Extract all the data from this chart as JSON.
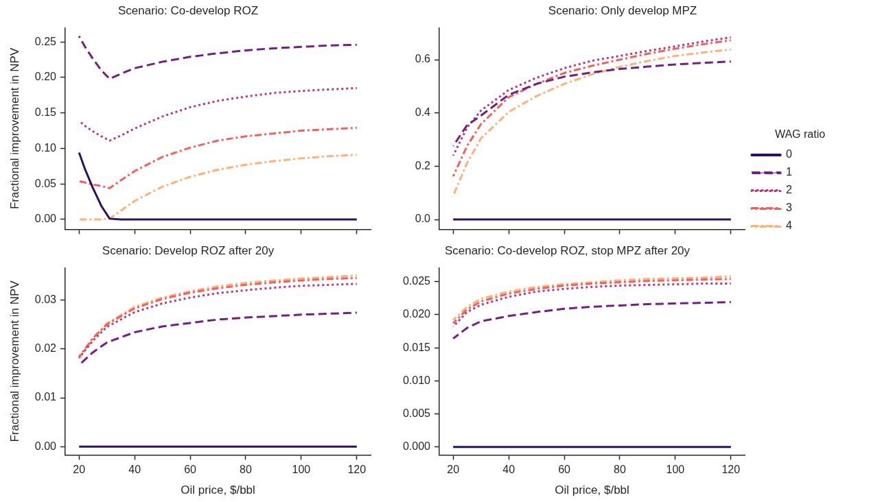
{
  "chart_data": [
    {
      "type": "line",
      "title": "Scenario: Co-develop ROZ",
      "ylabel": "Fractional improvement in NPV",
      "tick_labels": "y",
      "x": [
        20,
        22,
        25,
        28,
        31,
        35,
        40,
        50,
        60,
        70,
        80,
        90,
        100,
        110,
        120
      ],
      "xlim": [
        15,
        125
      ],
      "xticks": [
        20,
        40,
        60,
        80,
        100,
        120
      ],
      "ylim": [
        -0.014,
        0.27
      ],
      "yticks": [
        {
          "value": 0,
          "label": "0.00"
        },
        {
          "value": 0.05,
          "label": "0.05"
        },
        {
          "value": 0.1,
          "label": "0.10"
        },
        {
          "value": 0.15,
          "label": "0.15"
        },
        {
          "value": 0.2,
          "label": "0.20"
        },
        {
          "value": 0.25,
          "label": "0.25"
        }
      ],
      "series": [
        {
          "color": "#2d1160",
          "line_style": "solid",
          "values": [
            0.094,
            0.072,
            0.044,
            0.019,
            0.001,
            0,
            0,
            0,
            0,
            0,
            0,
            0,
            0,
            0,
            0
          ]
        },
        {
          "color": "#721f81",
          "line_style": "dashed",
          "values": [
            0.258,
            0.244,
            0.226,
            0.21,
            0.198,
            0.205,
            0.213,
            0.222,
            0.229,
            0.234,
            0.238,
            0.241,
            0.243,
            0.245,
            0.246
          ]
        },
        {
          "color": "#b73779",
          "line_style": "dotted",
          "values": [
            0.139,
            0.132,
            0.124,
            0.117,
            0.111,
            0.118,
            0.128,
            0.145,
            0.158,
            0.167,
            0.173,
            0.178,
            0.181,
            0.183,
            0.185
          ]
        },
        {
          "color": "#f1605d",
          "line_style": "dashdot",
          "values": [
            0.054,
            0.052,
            0.049,
            0.047,
            0.044,
            0.055,
            0.068,
            0.088,
            0.101,
            0.111,
            0.117,
            0.121,
            0.125,
            0.127,
            0.129
          ]
        },
        {
          "color": "#feb078",
          "line_style": "dashdot",
          "values": [
            0,
            0,
            0,
            0,
            0.001,
            0.012,
            0.026,
            0.046,
            0.06,
            0.07,
            0.077,
            0.082,
            0.086,
            0.089,
            0.091
          ]
        }
      ]
    },
    {
      "type": "line",
      "title": "Scenario: Only develop MPZ",
      "tick_labels": "y",
      "legend": "right",
      "legend_title": "WAG ratio",
      "x": [
        20,
        25,
        30,
        40,
        50,
        60,
        70,
        80,
        90,
        100,
        110,
        120
      ],
      "xlim": [
        15,
        125
      ],
      "xticks": [
        20,
        40,
        60,
        80,
        100,
        120
      ],
      "ylim": [
        -0.037,
        0.72
      ],
      "yticks": [
        {
          "value": 0,
          "label": "0.0"
        },
        {
          "value": 0.2,
          "label": "0.2"
        },
        {
          "value": 0.4,
          "label": "0.4"
        },
        {
          "value": 0.6,
          "label": "0.6"
        }
      ],
      "series": [
        {
          "name": "0",
          "color": "#2d1160",
          "line_style": "solid",
          "values": [
            0,
            0,
            0,
            0,
            0,
            0,
            0,
            0,
            0,
            0,
            0,
            0
          ]
        },
        {
          "name": "1",
          "color": "#721f81",
          "line_style": "dashed",
          "values": [
            0.276,
            0.354,
            0.39,
            0.468,
            0.509,
            0.536,
            0.552,
            0.565,
            0.574,
            0.582,
            0.588,
            0.593
          ]
        },
        {
          "name": "2",
          "color": "#b73779",
          "line_style": "dotted",
          "values": [
            0.24,
            0.345,
            0.409,
            0.486,
            0.532,
            0.568,
            0.596,
            0.614,
            0.633,
            0.65,
            0.668,
            0.684
          ]
        },
        {
          "name": "3",
          "color": "#f1605d",
          "line_style": "dashdot",
          "values": [
            0.162,
            0.276,
            0.358,
            0.459,
            0.509,
            0.55,
            0.577,
            0.6,
            0.622,
            0.641,
            0.658,
            0.673
          ]
        },
        {
          "name": "4",
          "color": "#feb078",
          "line_style": "dashdot",
          "values": [
            0.089,
            0.212,
            0.304,
            0.404,
            0.463,
            0.509,
            0.545,
            0.573,
            0.595,
            0.614,
            0.627,
            0.638
          ]
        }
      ]
    },
    {
      "type": "line",
      "title": "Scenario: Develop ROZ after 20y",
      "xlabel": "Oil price, $/bbl",
      "ylabel": "Fractional improvement in NPV",
      "x": [
        20,
        25,
        30,
        40,
        50,
        60,
        70,
        80,
        90,
        100,
        110,
        120
      ],
      "xlim": [
        15,
        125
      ],
      "xticks": [
        20,
        40,
        60,
        80,
        100,
        120
      ],
      "ylim": [
        -0.0017,
        0.0366
      ],
      "yticks": [
        {
          "value": 0,
          "label": "0.00"
        },
        {
          "value": 0.01,
          "label": "0.01"
        },
        {
          "value": 0.02,
          "label": "0.02"
        },
        {
          "value": 0.03,
          "label": "0.03"
        }
      ],
      "series": [
        {
          "color": "#2d1160",
          "line_style": "solid",
          "values": [
            0,
            0,
            0,
            0,
            0,
            0,
            0,
            0,
            0,
            0,
            0,
            0
          ]
        },
        {
          "color": "#721f81",
          "line_style": "dashed",
          "values": [
            0.0167,
            0.0193,
            0.0213,
            0.0234,
            0.0246,
            0.0253,
            0.026,
            0.0264,
            0.0267,
            0.027,
            0.0272,
            0.0274
          ]
        },
        {
          "color": "#b73779",
          "line_style": "dotted",
          "values": [
            0.0182,
            0.0217,
            0.0245,
            0.0275,
            0.0293,
            0.0305,
            0.0314,
            0.032,
            0.0325,
            0.0329,
            0.0331,
            0.0333
          ]
        },
        {
          "color": "#f1605d",
          "line_style": "dashdot",
          "values": [
            0.0184,
            0.0222,
            0.025,
            0.0283,
            0.0302,
            0.0315,
            0.0324,
            0.0331,
            0.0336,
            0.034,
            0.0343,
            0.0345
          ]
        },
        {
          "color": "#feb078",
          "line_style": "dashdot",
          "values": [
            0.018,
            0.0222,
            0.0252,
            0.0286,
            0.0305,
            0.0318,
            0.0328,
            0.0335,
            0.034,
            0.0344,
            0.0347,
            0.035
          ]
        }
      ]
    },
    {
      "type": "line",
      "title": "Scenario: Co-develop ROZ, stop MPZ after 20y",
      "xlabel": "Oil price, $/bbl",
      "x": [
        20,
        25,
        30,
        40,
        50,
        60,
        70,
        80,
        90,
        100,
        110,
        120
      ],
      "xlim": [
        15,
        125
      ],
      "xticks": [
        20,
        40,
        60,
        80,
        100,
        120
      ],
      "ylim": [
        -0.0012,
        0.0271
      ],
      "yticks": [
        {
          "value": 0,
          "label": "0.000"
        },
        {
          "value": 0.005,
          "label": "0.005"
        },
        {
          "value": 0.01,
          "label": "0.010"
        },
        {
          "value": 0.015,
          "label": "0.015"
        },
        {
          "value": 0.02,
          "label": "0.020"
        },
        {
          "value": 0.025,
          "label": "0.025"
        }
      ],
      "series": [
        {
          "color": "#2d1160",
          "line_style": "solid",
          "values": [
            0,
            0,
            0,
            0,
            0,
            0,
            0,
            0,
            0,
            0,
            0,
            0
          ]
        },
        {
          "color": "#721f81",
          "line_style": "dashed",
          "values": [
            0.0164,
            0.018,
            0.019,
            0.0198,
            0.0204,
            0.0209,
            0.0212,
            0.0214,
            0.0216,
            0.0217,
            0.0218,
            0.0219
          ]
        },
        {
          "color": "#b73779",
          "line_style": "dotted",
          "values": [
            0.0182,
            0.0204,
            0.0215,
            0.0227,
            0.0235,
            0.0239,
            0.0242,
            0.0244,
            0.0245,
            0.0246,
            0.0247,
            0.0247
          ]
        },
        {
          "color": "#f1605d",
          "line_style": "dashdot",
          "values": [
            0.0187,
            0.0208,
            0.022,
            0.0232,
            0.0239,
            0.0244,
            0.0247,
            0.0249,
            0.0251,
            0.0252,
            0.0253,
            0.0254
          ]
        },
        {
          "color": "#feb078",
          "line_style": "dashdot",
          "values": [
            0.0192,
            0.0212,
            0.0224,
            0.0235,
            0.0242,
            0.0246,
            0.0249,
            0.0252,
            0.0254,
            0.0255,
            0.0256,
            0.0258
          ]
        }
      ]
    }
  ]
}
